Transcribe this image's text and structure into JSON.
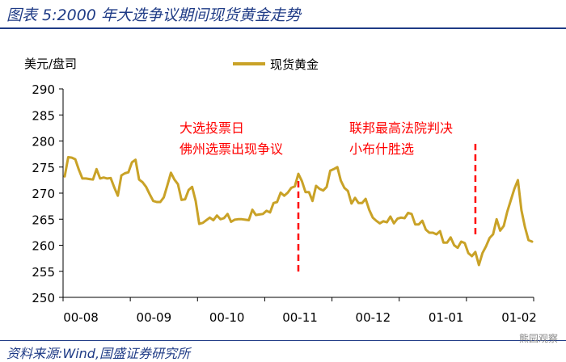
{
  "figure_title": "图表 5:2000 年大选争议期间现货黄金走势",
  "source": "资料来源:Wind,国盛证券研究所",
  "watermark": "熊园观察",
  "colors": {
    "line": "#c9a227",
    "annotation": "#ff0000",
    "title": "#1f3b86",
    "axis": "#000000"
  },
  "chart_data": {
    "type": "line",
    "ylabel": "美元/盘司",
    "ylim": [
      250,
      290
    ],
    "yticks": [
      250,
      255,
      260,
      265,
      270,
      275,
      280,
      285,
      290
    ],
    "xticks": [
      "00-08",
      "00-09",
      "00-10",
      "00-11",
      "00-12",
      "01-01",
      "01-02"
    ],
    "legend": "top-center",
    "series": [
      {
        "name": "现货黄金",
        "values": [
          273.2,
          276.9,
          276.8,
          276.5,
          274.5,
          272.8,
          272.8,
          272.7,
          272.6,
          274.6,
          272.8,
          273.0,
          272.8,
          272.9,
          271.1,
          269.5,
          273.4,
          273.8,
          274.0,
          275.9,
          276.4,
          272.6,
          272.1,
          271.2,
          269.8,
          268.5,
          268.3,
          268.3,
          269.2,
          271.5,
          273.9,
          272.6,
          271.7,
          268.7,
          268.8,
          270.6,
          271.2,
          268.5,
          264.1,
          264.3,
          264.8,
          265.3,
          264.8,
          265.7,
          265.0,
          265.2,
          266.0,
          264.5,
          264.9,
          265.0,
          265.0,
          264.9,
          264.8,
          266.8,
          265.8,
          265.9,
          266.0,
          266.6,
          266.3,
          268.1,
          268.3,
          270.1,
          269.5,
          270.1,
          271.0,
          271.3,
          273.7,
          272.3,
          270.2,
          270.2,
          268.5,
          271.4,
          270.8,
          270.5,
          271.2,
          274.3,
          274.6,
          275.0,
          272.4,
          271.0,
          270.4,
          268.0,
          269.1,
          268.1,
          268.1,
          268.9,
          266.8,
          265.3,
          264.7,
          264.2,
          264.6,
          264.4,
          265.5,
          264.2,
          265.1,
          265.3,
          265.2,
          266.2,
          266.0,
          264.0,
          264.0,
          264.7,
          263.0,
          262.4,
          262.4,
          262.1,
          262.7,
          260.5,
          260.5,
          261.5,
          260.0,
          259.5,
          260.7,
          260.4,
          258.5,
          257.9,
          258.7,
          256.2,
          258.5,
          259.8,
          261.4,
          262.1,
          265.0,
          262.8,
          263.7,
          266.4,
          268.6,
          270.8,
          272.5,
          266.7,
          263.5,
          261.0,
          260.7
        ]
      }
    ],
    "annotations": [
      {
        "lines": [
          "大选投票日",
          "佛州选票出现争议"
        ],
        "x": 66
      },
      {
        "lines": [
          "联邦最高法院判决",
          "小布什胜选"
        ],
        "x": 116
      }
    ]
  }
}
